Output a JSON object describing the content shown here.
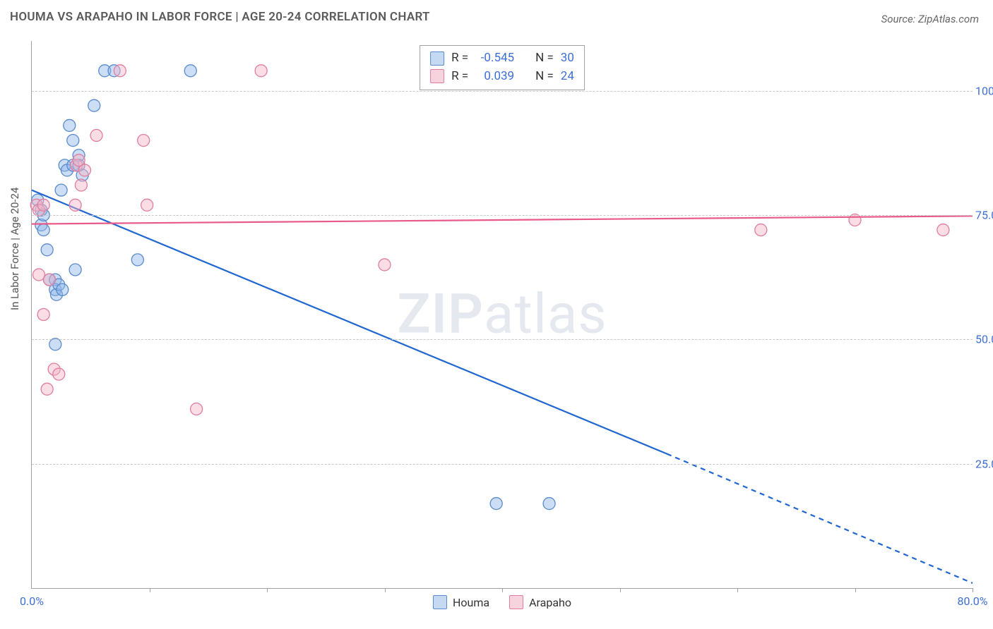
{
  "title": "HOUMA VS ARAPAHO IN LABOR FORCE | AGE 20-24 CORRELATION CHART",
  "source": "Source: ZipAtlas.com",
  "ylabel": "In Labor Force | Age 20-24",
  "watermark_bold": "ZIP",
  "watermark_rest": "atlas",
  "chart": {
    "type": "scatter",
    "xlim": [
      0,
      80
    ],
    "ylim": [
      0,
      110
    ],
    "ytick_values": [
      25,
      50,
      75,
      100
    ],
    "ytick_labels": [
      "25.0%",
      "50.0%",
      "75.0%",
      "100.0%"
    ],
    "xtick_values": [
      0,
      10,
      20,
      30,
      40,
      50,
      60,
      70,
      80
    ],
    "xtick_labels_shown": {
      "0": "0.0%",
      "80": "80.0%"
    },
    "grid_color": "#c8c8c8",
    "background_color": "#ffffff",
    "axis_color": "#a0a0a0",
    "label_fontsize": 15,
    "tick_fontsize": 16,
    "tick_color": "#3d6fd6",
    "marker_radius": 8.5,
    "marker_fill_opacity": 0.45,
    "marker_stroke_width": 1.3,
    "line_width": 2.2,
    "series": [
      {
        "name": "Houma",
        "color": "#8db5e8",
        "stroke": "#5a8bce",
        "line_color": "#1f66d0",
        "R": "-0.545",
        "N": "30",
        "trend": {
          "solid": {
            "x1": 0,
            "y1": 80,
            "x2": 54,
            "y2": 27
          },
          "dashed": {
            "x1": 54,
            "y1": 27,
            "x2": 80,
            "y2": 1
          }
        },
        "points": [
          {
            "x": 0.5,
            "y": 78
          },
          {
            "x": 0.8,
            "y": 76
          },
          {
            "x": 0.8,
            "y": 73
          },
          {
            "x": 1.0,
            "y": 75
          },
          {
            "x": 1.0,
            "y": 72
          },
          {
            "x": 1.3,
            "y": 68
          },
          {
            "x": 1.5,
            "y": 62
          },
          {
            "x": 2.0,
            "y": 62
          },
          {
            "x": 2.0,
            "y": 60
          },
          {
            "x": 2.1,
            "y": 59
          },
          {
            "x": 2.0,
            "y": 49
          },
          {
            "x": 2.3,
            "y": 61
          },
          {
            "x": 2.5,
            "y": 80
          },
          {
            "x": 2.6,
            "y": 60
          },
          {
            "x": 2.8,
            "y": 85
          },
          {
            "x": 3.0,
            "y": 84
          },
          {
            "x": 3.2,
            "y": 93
          },
          {
            "x": 3.5,
            "y": 90
          },
          {
            "x": 3.5,
            "y": 85
          },
          {
            "x": 3.7,
            "y": 64
          },
          {
            "x": 4.0,
            "y": 87
          },
          {
            "x": 4.0,
            "y": 85
          },
          {
            "x": 4.3,
            "y": 83
          },
          {
            "x": 5.3,
            "y": 97
          },
          {
            "x": 6.2,
            "y": 104
          },
          {
            "x": 7.0,
            "y": 104
          },
          {
            "x": 9.0,
            "y": 66
          },
          {
            "x": 13.5,
            "y": 104
          },
          {
            "x": 39.5,
            "y": 17
          },
          {
            "x": 44.0,
            "y": 17
          }
        ]
      },
      {
        "name": "Arapaho",
        "color": "#f3b4c6",
        "stroke": "#e07d9e",
        "line_color": "#e85a88",
        "R": "0.039",
        "N": "24",
        "trend": {
          "solid": {
            "x1": 0,
            "y1": 73.2,
            "x2": 80,
            "y2": 74.8
          },
          "dashed": null
        },
        "points": [
          {
            "x": 0.4,
            "y": 77
          },
          {
            "x": 0.6,
            "y": 76
          },
          {
            "x": 0.6,
            "y": 63
          },
          {
            "x": 1.0,
            "y": 77
          },
          {
            "x": 1.0,
            "y": 55
          },
          {
            "x": 1.3,
            "y": 40
          },
          {
            "x": 1.5,
            "y": 62
          },
          {
            "x": 1.9,
            "y": 44
          },
          {
            "x": 2.3,
            "y": 43
          },
          {
            "x": 3.7,
            "y": 77
          },
          {
            "x": 3.8,
            "y": 85
          },
          {
            "x": 4.0,
            "y": 86
          },
          {
            "x": 4.2,
            "y": 81
          },
          {
            "x": 4.5,
            "y": 84
          },
          {
            "x": 5.5,
            "y": 91
          },
          {
            "x": 7.5,
            "y": 104
          },
          {
            "x": 9.5,
            "y": 90
          },
          {
            "x": 9.8,
            "y": 77
          },
          {
            "x": 14.0,
            "y": 36
          },
          {
            "x": 19.5,
            "y": 104
          },
          {
            "x": 30.0,
            "y": 65
          },
          {
            "x": 62.0,
            "y": 72
          },
          {
            "x": 70.0,
            "y": 74
          },
          {
            "x": 77.5,
            "y": 72
          }
        ]
      }
    ]
  },
  "legend_top": {
    "rows": [
      {
        "swatch_fill": "#c5daf2",
        "swatch_stroke": "#5a8bce",
        "R_label": "R =",
        "R_val": "-0.545",
        "N_label": "N =",
        "N_val": "30"
      },
      {
        "swatch_fill": "#f7d3de",
        "swatch_stroke": "#e07d9e",
        "R_label": "R =",
        "R_val": "0.039",
        "N_label": "N =",
        "N_val": "24"
      }
    ]
  },
  "legend_bottom": {
    "items": [
      {
        "swatch_fill": "#c5daf2",
        "swatch_stroke": "#5a8bce",
        "label": "Houma"
      },
      {
        "swatch_fill": "#f7d3de",
        "swatch_stroke": "#e07d9e",
        "label": "Arapaho"
      }
    ]
  }
}
